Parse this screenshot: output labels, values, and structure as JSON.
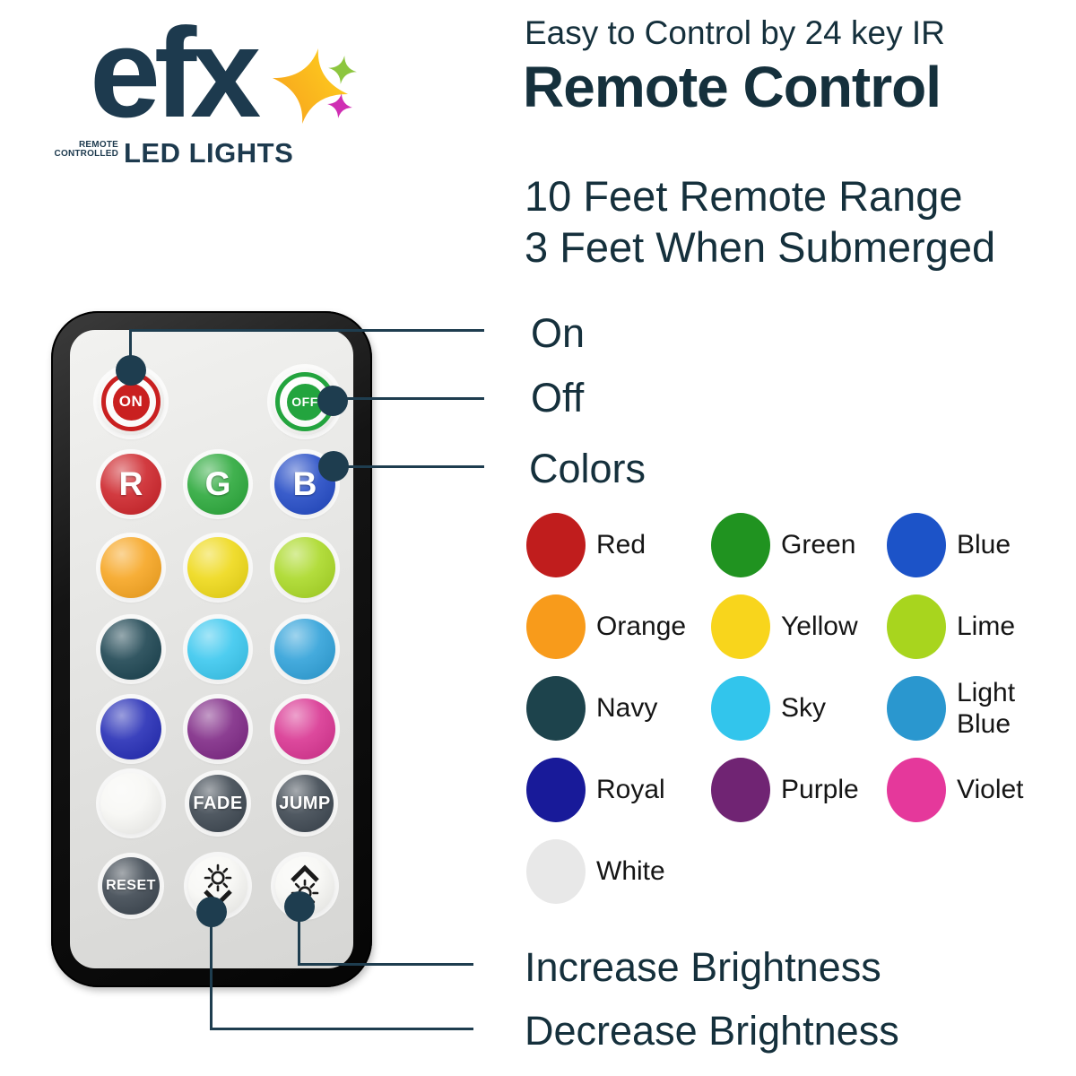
{
  "logo": {
    "brand": "efx",
    "tagline_line1": "REMOTE",
    "tagline_line2": "CONTROLLED",
    "product": "LED LIGHTS",
    "text_color": "#1d3a4e",
    "sparkles": [
      {
        "name": "sparkle-large",
        "color_start": "#f69d1d",
        "color_end": "#ffd41f"
      },
      {
        "name": "sparkle-green",
        "color": "#8dc63f"
      },
      {
        "name": "sparkle-magenta",
        "color": "#cf2eb3"
      }
    ]
  },
  "header": {
    "subtitle": "Easy to Control by 24 key IR",
    "title": "Remote Control",
    "range_line1": "10 Feet Remote Range",
    "range_line2": "3 Feet When Submerged"
  },
  "callouts": {
    "on": "On",
    "off": "Off",
    "colors": "Colors",
    "increase": "Increase Brightness",
    "decrease": "Decrease Brightness",
    "line_color": "#1e3d4f"
  },
  "remote": {
    "buttons": [
      {
        "name": "on",
        "type": "power",
        "label": "ON",
        "color": "#c92020",
        "col": 0,
        "row": 0
      },
      {
        "name": "off",
        "type": "power",
        "label": "OFF",
        "color": "#23a43e",
        "col": 2,
        "row": 0
      },
      {
        "name": "red",
        "type": "color",
        "label": "R",
        "color": "#cc2026",
        "col": 0,
        "row": 1
      },
      {
        "name": "green",
        "type": "color",
        "label": "G",
        "color": "#27a737",
        "col": 1,
        "row": 1
      },
      {
        "name": "blue",
        "type": "color",
        "label": "B",
        "color": "#1f47c4",
        "col": 2,
        "row": 1
      },
      {
        "name": "orange",
        "type": "color",
        "label": "",
        "color": "#f6a31c",
        "col": 0,
        "row": 2
      },
      {
        "name": "yellow",
        "type": "color",
        "label": "",
        "color": "#eed813",
        "col": 1,
        "row": 2
      },
      {
        "name": "lime",
        "type": "color",
        "label": "",
        "color": "#a8d822",
        "col": 2,
        "row": 2
      },
      {
        "name": "navy",
        "type": "color",
        "label": "",
        "color": "#17404d",
        "col": 0,
        "row": 3
      },
      {
        "name": "sky",
        "type": "color",
        "label": "",
        "color": "#36c6ee",
        "col": 1,
        "row": 3
      },
      {
        "name": "light-blue",
        "type": "color",
        "label": "",
        "color": "#2b9fd8",
        "col": 2,
        "row": 3
      },
      {
        "name": "royal",
        "type": "color",
        "label": "",
        "color": "#2028b4",
        "col": 0,
        "row": 4
      },
      {
        "name": "purple",
        "type": "color",
        "label": "",
        "color": "#7c2483",
        "col": 1,
        "row": 4
      },
      {
        "name": "violet",
        "type": "color",
        "label": "",
        "color": "#d8308f",
        "col": 2,
        "row": 4
      },
      {
        "name": "white",
        "type": "color",
        "label": "",
        "color": "#f7f7f4",
        "col": 0,
        "row": 5
      },
      {
        "name": "fade",
        "type": "text",
        "label": "FADE",
        "color": "#39434d",
        "col": 1,
        "row": 5
      },
      {
        "name": "jump",
        "type": "text",
        "label": "JUMP",
        "color": "#39434d",
        "col": 2,
        "row": 5
      },
      {
        "name": "reset",
        "type": "text",
        "label": "RESET",
        "color": "#39434d",
        "col": 0,
        "row": 6
      },
      {
        "name": "brightness-down",
        "type": "icon",
        "icon": "brightness-decrease-icon",
        "color": "#f7f7f4",
        "col": 1,
        "row": 6
      },
      {
        "name": "brightness-up",
        "type": "icon",
        "icon": "brightness-increase-icon",
        "color": "#f7f7f4",
        "col": 2,
        "row": 6
      }
    ]
  },
  "legend": {
    "items": [
      {
        "label": "Red",
        "color": "#c01d1d"
      },
      {
        "label": "Green",
        "color": "#209320"
      },
      {
        "label": "Blue",
        "color": "#1c53c8"
      },
      {
        "label": "Orange",
        "color": "#f89b1b"
      },
      {
        "label": "Yellow",
        "color": "#f8d51c"
      },
      {
        "label": "Lime",
        "color": "#a8d51e"
      },
      {
        "label": "Navy",
        "color": "#1d434c"
      },
      {
        "label": "Sky",
        "color": "#32c5ec"
      },
      {
        "label": "Light Blue",
        "color": "#2a97cf"
      },
      {
        "label": "Royal",
        "color": "#181a99"
      },
      {
        "label": "Purple",
        "color": "#702473"
      },
      {
        "label": "Violet",
        "color": "#e5389b"
      },
      {
        "label": "White",
        "color": "#e8e8e8"
      }
    ]
  }
}
